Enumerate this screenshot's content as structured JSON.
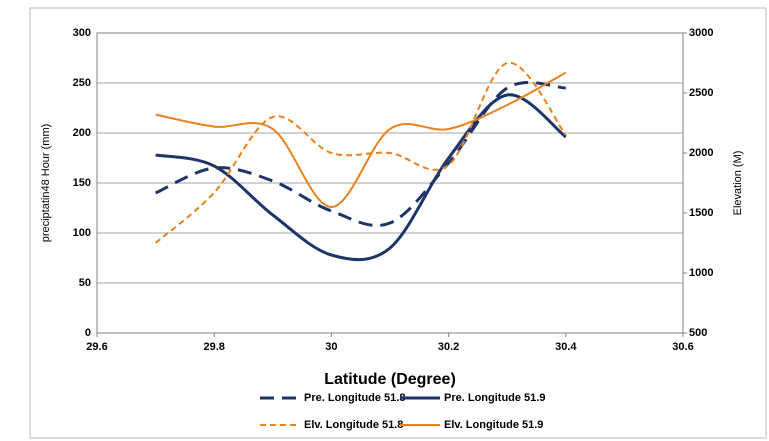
{
  "chart_data": {
    "type": "line",
    "x_label": "Latitude (Degree)",
    "y_label": "preciptatin48 Hour (mm)",
    "y2_label": "Elevation (M)",
    "xlim": [
      29.6,
      30.6
    ],
    "xticks": [
      29.6,
      29.8,
      30,
      30.2,
      30.4,
      30.6
    ],
    "ylim": [
      0,
      300
    ],
    "yticks": [
      0,
      50,
      100,
      150,
      200,
      250,
      300
    ],
    "y2lim": [
      500,
      3000
    ],
    "y2ticks": [
      500,
      1000,
      1500,
      2000,
      2500,
      3000
    ],
    "grid": true,
    "x": [
      29.7,
      29.8,
      29.9,
      30.0,
      30.1,
      30.2,
      30.3,
      30.4
    ],
    "series": [
      {
        "name": "Pre. Longitude 51.8",
        "color": "#1f3468",
        "line_style": "dashed",
        "values": [
          140,
          165,
          152,
          122,
          110,
          170,
          245,
          245
        ]
      },
      {
        "name": "Pre. Longitude 51.9",
        "color": "#1f3468",
        "line_style": "solid",
        "values": [
          178,
          167,
          118,
          78,
          85,
          175,
          238,
          196
        ]
      },
      {
        "name": "Elv. Longitude 51.8",
        "color": "#e8821e",
        "line_style": "dashed",
        "axis": "y2",
        "values": [
          1250,
          1670,
          2300,
          2000,
          2000,
          1900,
          2750,
          2150
        ]
      },
      {
        "name": "Elv. Longitude 51.9",
        "color": "#e8821e",
        "line_style": "solid",
        "axis": "y2",
        "values": [
          2320,
          2220,
          2200,
          1550,
          2200,
          2200,
          2400,
          2670
        ]
      }
    ]
  }
}
